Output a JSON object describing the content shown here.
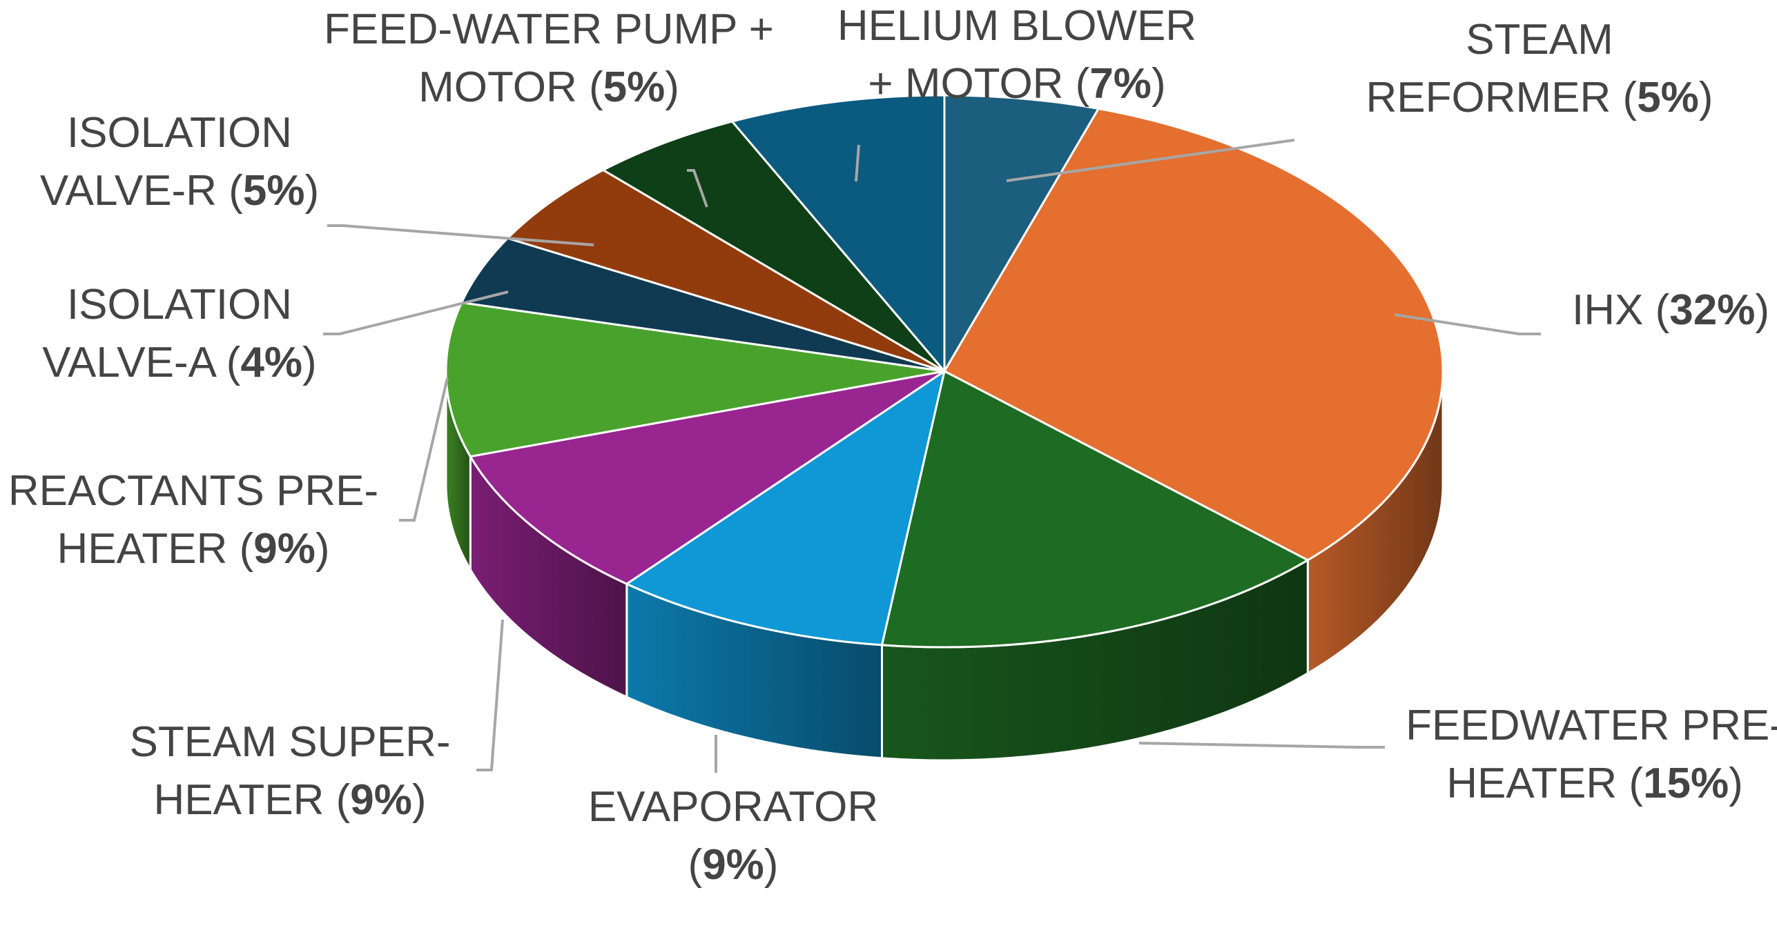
{
  "chart_data": {
    "type": "pie",
    "style": "3d",
    "title": "",
    "slices": [
      {
        "name": "STEAM REFORMER",
        "value": 5,
        "label": "5%",
        "color": "#1b5e7e"
      },
      {
        "name": "IHX",
        "value": 32,
        "label": "32%",
        "color": "#e46f2f"
      },
      {
        "name": "FEEDWATER PRE-HEATER",
        "value": 15,
        "label": "15%",
        "color": "#1e6b23"
      },
      {
        "name": "EVAPORATOR",
        "value": 9,
        "label": "9%",
        "color": "#0f97d6"
      },
      {
        "name": "STEAM SUPER-HEATER",
        "value": 9,
        "label": "9%",
        "color": "#992591"
      },
      {
        "name": "REACTANTS PRE-HEATER",
        "value": 9,
        "label": "9%",
        "color": "#49a22c"
      },
      {
        "name": "ISOLATION VALVE-A",
        "value": 4,
        "label": "4%",
        "color": "#0f3a52"
      },
      {
        "name": "ISOLATION VALVE-R",
        "value": 5,
        "label": "5%",
        "color": "#923c0d"
      },
      {
        "name": "FEED-WATER PUMP + MOTOR",
        "value": 5,
        "label": "5%",
        "color": "#0f3f16"
      },
      {
        "name": "HELIUM BLOWER + MOTOR",
        "value": 7,
        "label": "7%",
        "color": "#0b5a80"
      }
    ],
    "label_lines": [
      {
        "slice": 0,
        "lines": [
          {
            "text": "STEAM"
          },
          {
            "text": "REFORMER (",
            "pct": "5%",
            "after": ")"
          }
        ]
      },
      {
        "slice": 1,
        "lines": [
          {
            "text": "IHX (",
            "pct": "32%",
            "after": ")"
          }
        ]
      },
      {
        "slice": 2,
        "lines": [
          {
            "text": "FEEDWATER PRE-"
          },
          {
            "text": "HEATER (",
            "pct": "15%",
            "after": ")"
          }
        ]
      },
      {
        "slice": 3,
        "lines": [
          {
            "text": "EVAPORATOR"
          },
          {
            "text": "(",
            "pct": "9%",
            "after": ")"
          }
        ]
      },
      {
        "slice": 4,
        "lines": [
          {
            "text": "STEAM SUPER-"
          },
          {
            "text": "HEATER (",
            "pct": "9%",
            "after": ")"
          }
        ]
      },
      {
        "slice": 5,
        "lines": [
          {
            "text": "REACTANTS PRE-"
          },
          {
            "text": "HEATER (",
            "pct": "9%",
            "after": ")"
          }
        ]
      },
      {
        "slice": 6,
        "lines": [
          {
            "text": "ISOLATION"
          },
          {
            "text": "VALVE-A (",
            "pct": "4%",
            "after": ")"
          }
        ]
      },
      {
        "slice": 7,
        "lines": [
          {
            "text": "ISOLATION"
          },
          {
            "text": "VALVE-R (",
            "pct": "5%",
            "after": ")"
          }
        ]
      },
      {
        "slice": 8,
        "lines": [
          {
            "text": "FEED-WATER PUMP +"
          },
          {
            "text": "MOTOR (",
            "pct": "5%",
            "after": ")"
          }
        ]
      },
      {
        "slice": 9,
        "lines": [
          {
            "text": "HELIUM BLOWER"
          },
          {
            "text": "+ MOTOR (",
            "pct": "7%",
            "after": ")"
          }
        ]
      }
    ],
    "legend": "none",
    "data_labels": "outside-with-leader-lines"
  }
}
